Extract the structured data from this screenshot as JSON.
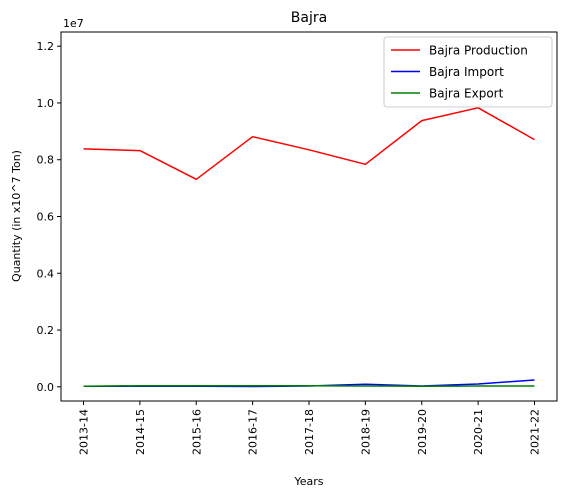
{
  "chart_data": {
    "type": "line",
    "title": "Bajra",
    "xlabel": "Years",
    "ylabel": "Quantity (in x10^7 Ton)",
    "y_offset_label": "1e7",
    "categories": [
      "2013-14",
      "2014-15",
      "2015-16",
      "2016-17",
      "2017-18",
      "2018-19",
      "2019-20",
      "2020-21",
      "2021-22"
    ],
    "y_ticks": [
      0.0,
      0.2,
      0.4,
      0.6,
      0.8,
      1.0,
      1.2
    ],
    "ylim": [
      -0.05,
      1.25
    ],
    "grid": false,
    "legend_position": "top-right",
    "series": [
      {
        "name": "Bajra Production",
        "color": "#ff0000",
        "values": [
          0.838,
          0.832,
          0.731,
          0.881,
          0.835,
          0.784,
          0.938,
          0.983,
          0.871
        ]
      },
      {
        "name": "Bajra Import",
        "color": "#0000ff",
        "values": [
          0.002,
          0.002,
          0.002,
          0.001,
          0.003,
          0.009,
          0.003,
          0.01,
          0.024
        ]
      },
      {
        "name": "Bajra Export",
        "color": "#008000",
        "values": [
          0.002,
          0.004,
          0.004,
          0.004,
          0.004,
          0.003,
          0.002,
          0.003,
          0.003
        ]
      }
    ]
  }
}
